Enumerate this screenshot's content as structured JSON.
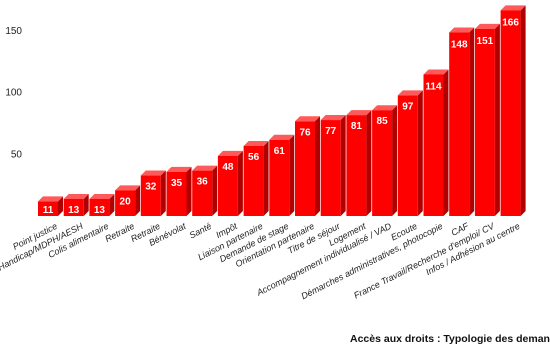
{
  "chart_data": {
    "type": "bar",
    "title": "Accès aux droits : Typologie des demandes d'aides",
    "categories": [
      "Point justice",
      "Handicap/MDPH/AESH",
      "Colis alimentaire",
      "Retraite",
      "Retraite",
      "Bénévolat",
      "Santé",
      "Impôt",
      "Liaison partenaire",
      "Demande de stage",
      "Orientation partenaire",
      "Titre de séjour",
      "Logement",
      "Accompagnement individualisé / VAD",
      "Ecoute",
      "Démarches administratives, photocopie",
      "CAF",
      "France Travail/Recherche d'emploi/ CV",
      "Infos / Adhésion au centre"
    ],
    "values": [
      11,
      13,
      13,
      20,
      32,
      35,
      36,
      48,
      56,
      61,
      76,
      77,
      81,
      85,
      97,
      114,
      148,
      151,
      166
    ],
    "yticks": [
      50,
      100,
      150
    ],
    "ylim": [
      0,
      175
    ],
    "grid": false,
    "legend": "none",
    "bar_color": "#ff0000",
    "bar_side_color": "#b00000",
    "bar_top_color": "#ff5a5a",
    "label_color": "#ffffff"
  }
}
